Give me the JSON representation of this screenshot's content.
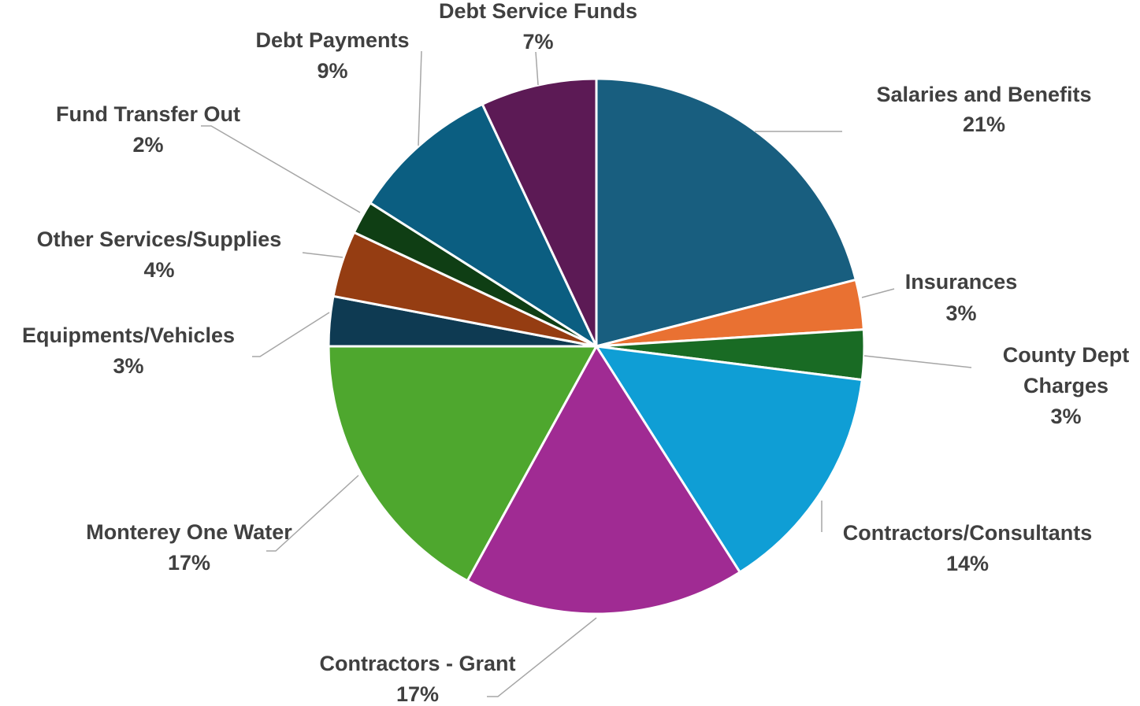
{
  "chart_data": {
    "type": "pie",
    "title": "",
    "slices": [
      {
        "label": "Salaries and Benefits",
        "pct_label": "21%",
        "value": 21,
        "color": "#185e7f"
      },
      {
        "label": "Insurances",
        "pct_label": "3%",
        "value": 3,
        "color": "#e97132"
      },
      {
        "label": "County Dept Charges",
        "pct_label": "3%",
        "value": 3,
        "color": "#196b24"
      },
      {
        "label": "Contractors/Consultants",
        "pct_label": "14%",
        "value": 14,
        "color": "#0f9ed5"
      },
      {
        "label": "Contractors - Grant",
        "pct_label": "17%",
        "value": 17,
        "color": "#a02b93"
      },
      {
        "label": "Monterey One Water",
        "pct_label": "17%",
        "value": 17,
        "color": "#4ea72e"
      },
      {
        "label": "Equipments/Vehicles",
        "pct_label": "3%",
        "value": 3,
        "color": "#0e3a52"
      },
      {
        "label": "Other Services/Supplies",
        "pct_label": "4%",
        "value": 4,
        "color": "#953d12"
      },
      {
        "label": "Fund Transfer Out",
        "pct_label": "2%",
        "value": 2,
        "color": "#0f3e14"
      },
      {
        "label": "Debt Payments",
        "pct_label": "9%",
        "value": 9,
        "color": "#0b5e81"
      },
      {
        "label": "Debt Service Funds",
        "pct_label": "7%",
        "value": 7,
        "color": "#5c1a55"
      }
    ],
    "legend": "none",
    "data_labels": "outside with leader lines"
  }
}
